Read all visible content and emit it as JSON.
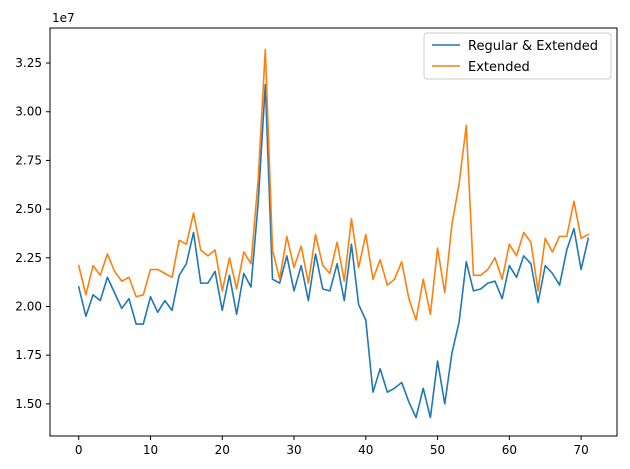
{
  "chart_data": {
    "type": "line",
    "scale_label": "1e7",
    "x": [
      0,
      1,
      2,
      3,
      4,
      5,
      6,
      7,
      8,
      9,
      10,
      11,
      12,
      13,
      14,
      15,
      16,
      17,
      18,
      19,
      20,
      21,
      22,
      23,
      24,
      25,
      26,
      27,
      28,
      29,
      30,
      31,
      32,
      33,
      34,
      35,
      36,
      37,
      38,
      39,
      40,
      41,
      42,
      43,
      44,
      45,
      46,
      47,
      48,
      49,
      50,
      51,
      52,
      53,
      54,
      55,
      56,
      57,
      58,
      59,
      60,
      61,
      62,
      63,
      64,
      65,
      66,
      67,
      68,
      69,
      70,
      71
    ],
    "xlim": [
      -4,
      75
    ],
    "ylim": [
      1.335,
      3.43
    ],
    "x_ticks": [
      0,
      10,
      20,
      30,
      40,
      50,
      60,
      70
    ],
    "x_tick_labels": [
      "0",
      "10",
      "20",
      "30",
      "40",
      "50",
      "60",
      "70"
    ],
    "y_ticks": [
      1.5,
      1.75,
      2.0,
      2.25,
      2.5,
      2.75,
      3.0,
      3.25
    ],
    "y_tick_labels": [
      "1.50",
      "1.75",
      "2.00",
      "2.25",
      "2.50",
      "2.75",
      "3.00",
      "3.25"
    ],
    "grid": false,
    "legend_position": "top-right",
    "series": [
      {
        "name": "Regular & Extended",
        "color": "#1f77b4",
        "values": [
          2.1,
          1.95,
          2.06,
          2.03,
          2.15,
          2.07,
          1.99,
          2.04,
          1.91,
          1.91,
          2.05,
          1.97,
          2.03,
          1.98,
          2.16,
          2.22,
          2.38,
          2.12,
          2.12,
          2.18,
          1.98,
          2.16,
          1.96,
          2.17,
          2.1,
          2.53,
          3.14,
          2.14,
          2.12,
          2.26,
          2.08,
          2.21,
          2.03,
          2.27,
          2.09,
          2.08,
          2.22,
          2.03,
          2.32,
          2.01,
          1.93,
          1.56,
          1.68,
          1.56,
          1.58,
          1.61,
          1.51,
          1.43,
          1.58,
          1.43,
          1.72,
          1.5,
          1.76,
          1.92,
          2.23,
          2.08,
          2.09,
          2.12,
          2.13,
          2.04,
          2.21,
          2.15,
          2.26,
          2.22,
          2.02,
          2.21,
          2.17,
          2.11,
          2.29,
          2.4,
          2.19,
          2.35
        ]
      },
      {
        "name": "Extended",
        "color": "#ff7f0e",
        "values": [
          2.21,
          2.06,
          2.21,
          2.16,
          2.27,
          2.18,
          2.13,
          2.15,
          2.05,
          2.06,
          2.19,
          2.19,
          2.17,
          2.15,
          2.34,
          2.32,
          2.48,
          2.29,
          2.26,
          2.29,
          2.08,
          2.25,
          2.09,
          2.28,
          2.22,
          2.65,
          3.32,
          2.29,
          2.14,
          2.36,
          2.2,
          2.31,
          2.12,
          2.37,
          2.21,
          2.17,
          2.33,
          2.13,
          2.45,
          2.2,
          2.37,
          2.14,
          2.24,
          2.11,
          2.14,
          2.23,
          2.04,
          1.93,
          2.14,
          1.96,
          2.3,
          2.07,
          2.42,
          2.63,
          2.93,
          2.16,
          2.16,
          2.19,
          2.25,
          2.14,
          2.32,
          2.26,
          2.38,
          2.33,
          2.08,
          2.35,
          2.28,
          2.36,
          2.36,
          2.54,
          2.35,
          2.37
        ]
      }
    ]
  }
}
